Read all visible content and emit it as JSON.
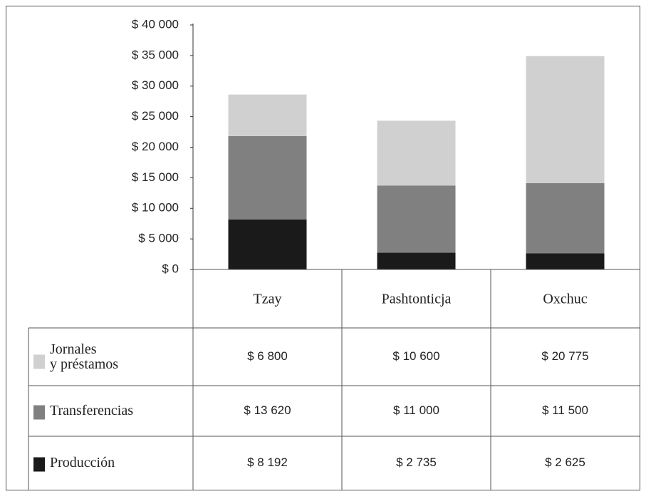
{
  "chart_data": {
    "type": "stacked_bar",
    "categories": [
      "Tzay",
      "Pashtonticja",
      "Oxchuc"
    ],
    "series": [
      {
        "name": "Producción",
        "color": "#1a1a1a",
        "values": [
          8192,
          2735,
          2625
        ],
        "value_labels": [
          "$ 8 192",
          "$ 2 735",
          "$ 2 625"
        ]
      },
      {
        "name": "Transferencias",
        "color": "#808080",
        "values": [
          13620,
          11000,
          11500
        ],
        "value_labels": [
          "$ 13 620",
          "$ 11 000",
          "$ 11 500"
        ]
      },
      {
        "name": "Jornales\ny préstamos",
        "color": "#d0d0d0",
        "values": [
          6800,
          10600,
          20775
        ],
        "value_labels": [
          "$ 6 800",
          "$ 10 600",
          "$ 20 775"
        ]
      }
    ],
    "ylim": [
      0,
      40000
    ],
    "yticks": [
      {
        "value": 0,
        "label": "$ 0"
      },
      {
        "value": 5000,
        "label": "$ 5 000"
      },
      {
        "value": 10000,
        "label": "$ 10 000"
      },
      {
        "value": 15000,
        "label": "$ 15 000"
      },
      {
        "value": 20000,
        "label": "$ 20 000"
      },
      {
        "value": 25000,
        "label": "$ 25 000"
      },
      {
        "value": 30000,
        "label": "$ 30 000"
      },
      {
        "value": 35000,
        "label": "$ 35 000"
      },
      {
        "value": 40000,
        "label": "$ 40 000"
      }
    ]
  }
}
